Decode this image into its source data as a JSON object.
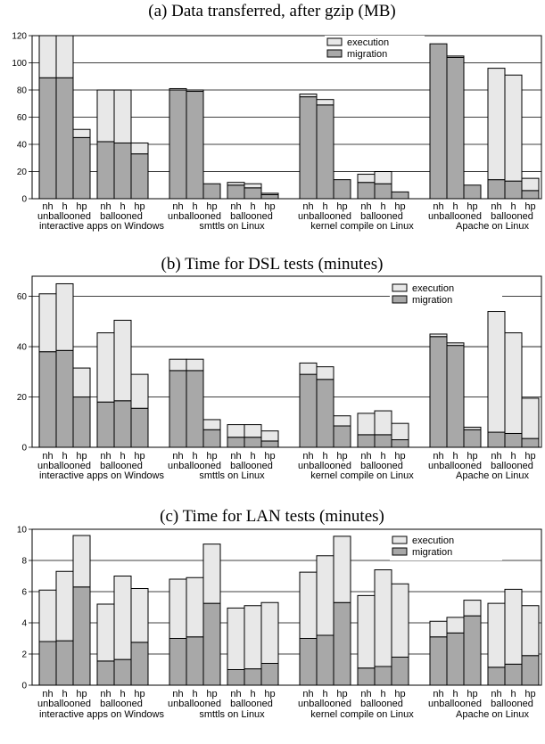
{
  "colors": {
    "migration": "#a8a8a8",
    "execution": "#e8e8e8",
    "stroke": "#000000"
  },
  "legend": {
    "execution": "execution",
    "migration": "migration"
  },
  "chart_data": [
    {
      "type": "bar",
      "title": "(a) Data transferred, after gzip (MB)",
      "ylim": [
        0,
        120
      ],
      "yticks": [
        0,
        20,
        40,
        60,
        80,
        100,
        120
      ],
      "stacking": "migration bottom, execution top",
      "groups": [
        "interactive apps on Windows",
        "smttls on Linux",
        "kernel compile on Linux",
        "Apache on Linux"
      ],
      "subgroups": [
        "unballooned",
        "ballooned"
      ],
      "bar_labels": [
        "nh",
        "h",
        "hp"
      ],
      "series": [
        {
          "name": "migration",
          "values": [
            89,
            89,
            45,
            42,
            41,
            33,
            80,
            79,
            11,
            10,
            8,
            3,
            75,
            69,
            14,
            12,
            11,
            5,
            114,
            104,
            10,
            14,
            13,
            6
          ]
        },
        {
          "name": "execution",
          "values": [
            31,
            31,
            6,
            38,
            39,
            8,
            1,
            1,
            0,
            2,
            3,
            1,
            2,
            4,
            0,
            6,
            9,
            0,
            0,
            1,
            0,
            82,
            78,
            9
          ]
        }
      ]
    },
    {
      "type": "bar",
      "title": "(b) Time for DSL tests (minutes)",
      "ylim": [
        0,
        68
      ],
      "yticks": [
        0,
        20,
        40,
        60
      ],
      "stacking": "migration bottom, execution top",
      "groups": [
        "interactive apps on Windows",
        "smttls on Linux",
        "kernel compile on Linux",
        "Apache on Linux"
      ],
      "subgroups": [
        "unballooned",
        "ballooned"
      ],
      "bar_labels": [
        "nh",
        "h",
        "hp"
      ],
      "series": [
        {
          "name": "migration",
          "values": [
            38,
            38.5,
            20,
            18,
            18.5,
            15.5,
            30.5,
            30.5,
            7,
            4,
            4,
            2.5,
            29,
            27,
            8.5,
            5,
            5,
            3,
            44,
            40.5,
            7,
            6,
            5.5,
            3.5
          ]
        },
        {
          "name": "execution",
          "values": [
            23,
            26.5,
            11.5,
            27.5,
            32,
            13.5,
            4.5,
            4.5,
            4,
            5,
            5,
            4,
            4.5,
            5,
            4,
            8.5,
            9.5,
            6.5,
            1,
            1,
            1,
            48,
            40,
            16
          ]
        }
      ]
    },
    {
      "type": "bar",
      "title": "(c) Time for LAN tests (minutes)",
      "ylim": [
        0,
        10
      ],
      "yticks": [
        0,
        2,
        4,
        6,
        8,
        10
      ],
      "stacking": "migration bottom, execution top",
      "groups": [
        "interactive apps on Windows",
        "smttls on Linux",
        "kernel compile on Linux",
        "Apache on Linux"
      ],
      "subgroups": [
        "unballooned",
        "ballooned"
      ],
      "bar_labels": [
        "nh",
        "h",
        "hp"
      ],
      "series": [
        {
          "name": "migration",
          "values": [
            2.8,
            2.85,
            6.3,
            1.55,
            1.65,
            2.75,
            3.0,
            3.1,
            5.25,
            1.0,
            1.05,
            1.4,
            3.0,
            3.2,
            5.3,
            1.1,
            1.2,
            1.8,
            3.1,
            3.35,
            4.45,
            1.15,
            1.35,
            1.9
          ]
        },
        {
          "name": "execution",
          "values": [
            3.3,
            4.45,
            3.3,
            3.65,
            5.35,
            3.45,
            3.8,
            3.8,
            3.8,
            3.95,
            4.05,
            3.9,
            4.25,
            5.1,
            4.25,
            4.65,
            6.2,
            4.7,
            1.0,
            1.0,
            1.0,
            4.1,
            4.8,
            3.2
          ]
        }
      ]
    }
  ]
}
